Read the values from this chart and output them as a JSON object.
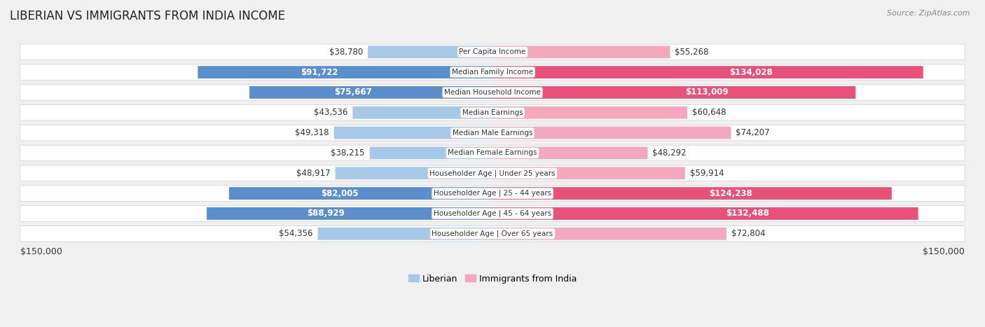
{
  "title": "LIBERIAN VS IMMIGRANTS FROM INDIA INCOME",
  "source": "Source: ZipAtlas.com",
  "categories": [
    "Per Capita Income",
    "Median Family Income",
    "Median Household Income",
    "Median Earnings",
    "Median Male Earnings",
    "Median Female Earnings",
    "Householder Age | Under 25 years",
    "Householder Age | 25 - 44 years",
    "Householder Age | 45 - 64 years",
    "Householder Age | Over 65 years"
  ],
  "liberian_values": [
    38780,
    91722,
    75667,
    43536,
    49318,
    38215,
    48917,
    82005,
    88929,
    54356
  ],
  "india_values": [
    55268,
    134028,
    113009,
    60648,
    74207,
    48292,
    59914,
    124238,
    132488,
    72804
  ],
  "liberian_color_light": "#a8c8e8",
  "liberian_color_dark": "#5b8fcc",
  "india_color_light": "#f4a8c0",
  "india_color_dark": "#e8527a",
  "lib_dark_threshold": 65000,
  "ind_dark_threshold": 100000,
  "max_value": 150000,
  "bg_color": "#f0f0f0",
  "row_bg": "#e8e8e8",
  "title_fontsize": 12,
  "value_fontsize": 8.5,
  "cat_fontsize": 7.5,
  "tick_label": "$150,000",
  "liberian_label": "Liberian",
  "india_label": "Immigrants from India"
}
